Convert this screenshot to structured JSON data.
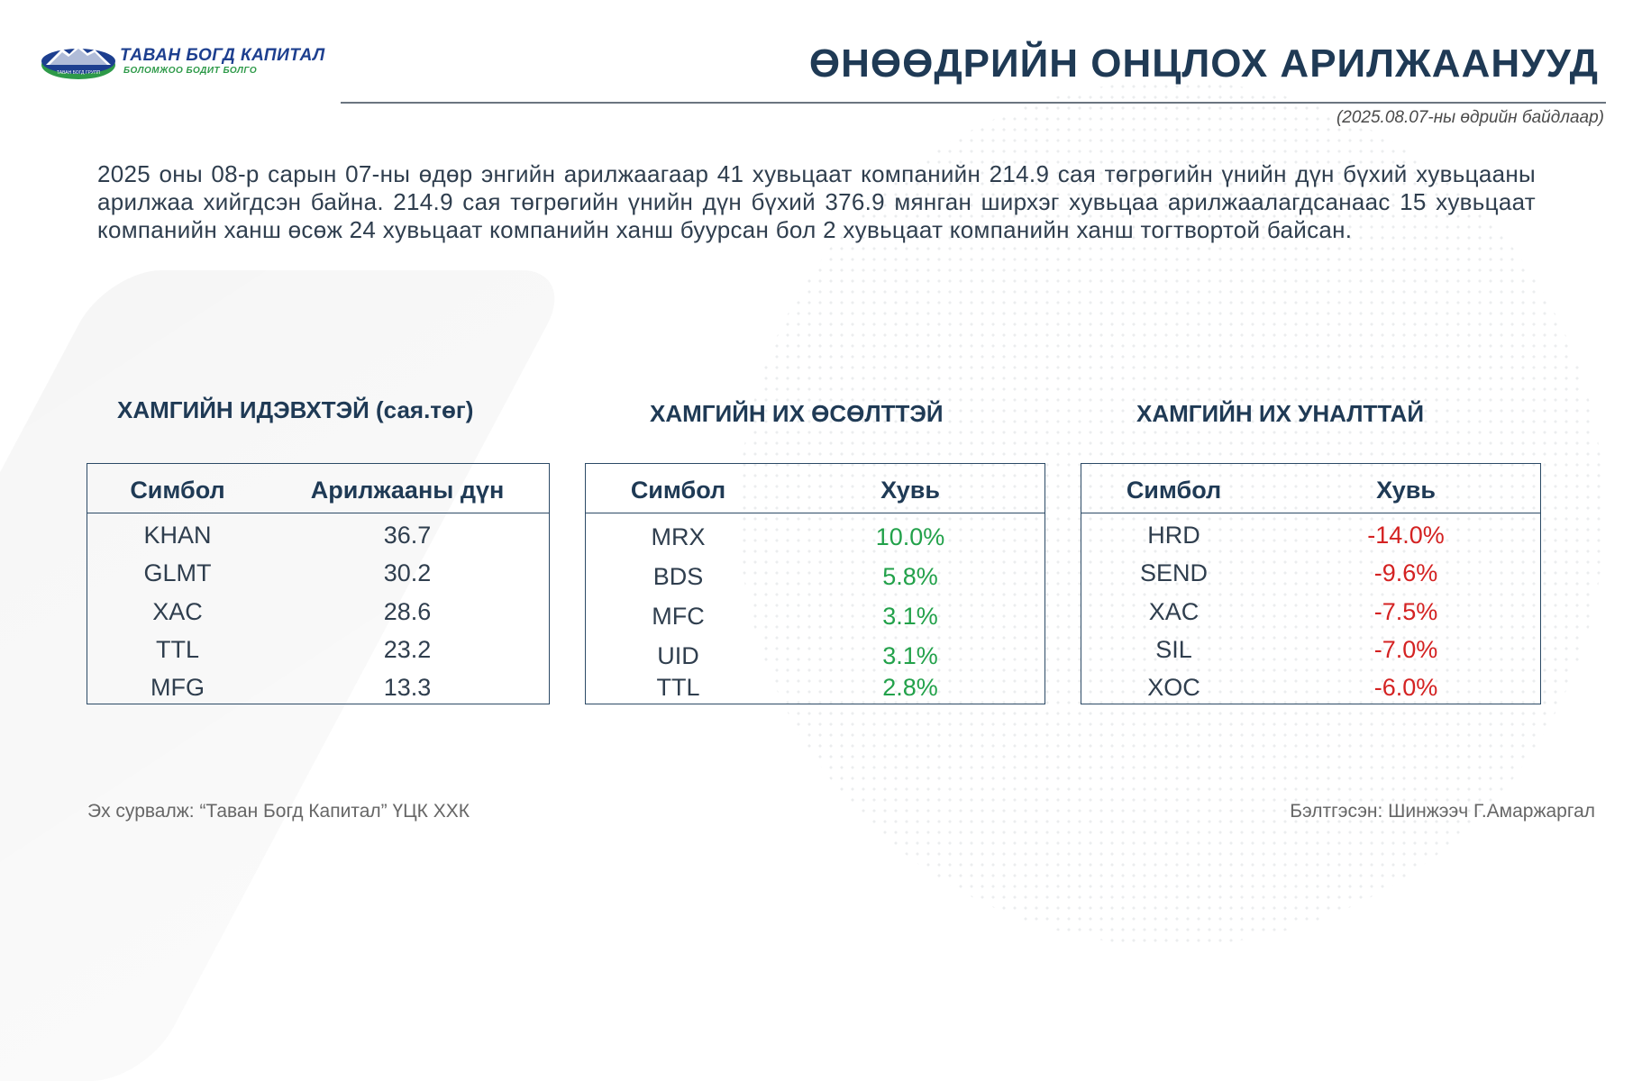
{
  "logo": {
    "title": "ТАВАН БОГД КАПИТАЛ",
    "subtitle": "БОЛОМЖОО БОДИТ БОЛГО",
    "emblem_text": "ТАВАН БОГД ГРУПП",
    "colors": {
      "blue": "#1d3f8f",
      "green": "#2e9a49"
    }
  },
  "header": {
    "title": "ӨНӨӨДРИЙН ОНЦЛОХ АРИЛЖААНУУД",
    "date_note": "(2025.08.07-ны өдрийн байдлаар)"
  },
  "summary": "2025 оны 08-р сарын 07-ны өдөр энгийн арилжаагаар 41 хувьцаат компанийн 214.9 сая төгрөгийн үнийн дүн бүхий хувьцааны арилжаа хийгдсэн байна. 214.9 сая төгрөгийн үнийн дүн бүхий 376.9 мянган ширхэг хувьцаа арилжаалагдсанаас 15 хувьцаат компанийн ханш өсөж 24 хувьцаат компанийн ханш буурсан бол 2 хувьцаат компанийн ханш тогтвортой байсан.",
  "tables": {
    "active": {
      "title": "ХАМГИЙН ИДЭВХТЭЙ (сая.төг)",
      "headers": [
        "Симбол",
        "Арилжааны дүн"
      ],
      "rows": [
        [
          "KHAN",
          "36.7"
        ],
        [
          "GLMT",
          "30.2"
        ],
        [
          "XAC",
          "28.6"
        ],
        [
          "TTL",
          "23.2"
        ],
        [
          "MFG",
          "13.3"
        ]
      ]
    },
    "gainers": {
      "title": "ХАМГИЙН ИХ ӨСӨЛТТЭЙ",
      "headers": [
        "Симбол",
        "Хувь"
      ],
      "rows": [
        [
          "MRX",
          "10.0%"
        ],
        [
          "BDS",
          "5.8%"
        ],
        [
          "MFC",
          "3.1%"
        ],
        [
          "UID",
          "3.1%"
        ],
        [
          "TTL",
          "2.8%"
        ]
      ]
    },
    "losers": {
      "title": "ХАМГИЙН ИХ УНАЛТТАЙ",
      "headers": [
        "Симбол",
        "Хувь"
      ],
      "rows": [
        [
          "HRD",
          "-14.0%"
        ],
        [
          "SEND",
          "-9.6%"
        ],
        [
          "XAC",
          "-7.5%"
        ],
        [
          "SIL",
          "-7.0%"
        ],
        [
          "XOC",
          "-6.0%"
        ]
      ]
    }
  },
  "colors": {
    "gain": "#22a14a",
    "loss": "#d42222",
    "accent": "#1f3a55"
  },
  "footer": {
    "source": "Эх сурвалж: “Таван Богд Капитал” ҮЦК ХХК",
    "prepared_by": "Бэлтгэсэн: Шинжээч Г.Амаржаргал"
  }
}
